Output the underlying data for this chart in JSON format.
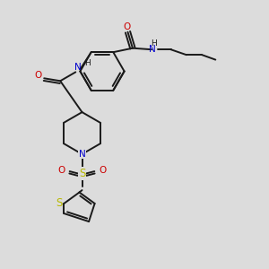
{
  "background_color": "#dcdcdc",
  "bond_color": "#1a1a1a",
  "nitrogen_color": "#0000cc",
  "oxygen_color": "#cc0000",
  "sulfur_color": "#b8b800",
  "figsize": [
    3.0,
    3.0
  ],
  "dpi": 100,
  "xlim": [
    0,
    10
  ],
  "ylim": [
    0,
    10
  ]
}
